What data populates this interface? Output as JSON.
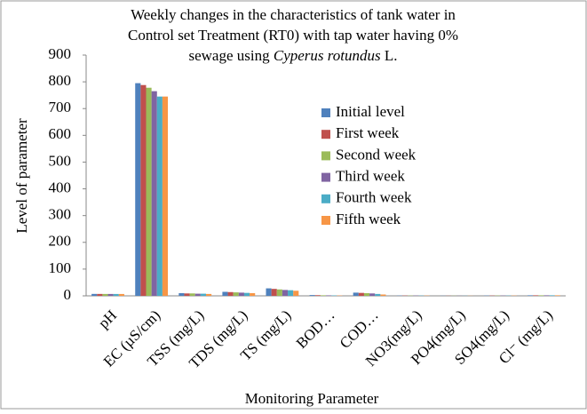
{
  "chart_data": {
    "type": "bar",
    "title_lines": [
      [
        "Weekly changes in the characteristics of tank water in"
      ],
      [
        "Control set Treatment (RT0) with tap water having 0%"
      ],
      [
        "sewage using ",
        "Cyperus rotundus",
        " L."
      ]
    ],
    "x_label": "Monitoring Parameter",
    "y_label": "Level  of parameter",
    "categories": [
      "pH",
      "EC (µS/cm)",
      "TSS (mg/L)",
      "TDS (mg/L)",
      "TS (mg/L)",
      "BOD…",
      "COD…",
      "NO3(mg/L)",
      "PO4(mg/L)",
      "SO4(mg/L)",
      "Cl⁻ (mg/L)"
    ],
    "series": [
      {
        "name": "Initial level",
        "color": "#4f81bd",
        "values": [
          7.2,
          795,
          10,
          15,
          28,
          3,
          12,
          1,
          0.5,
          1,
          2
        ]
      },
      {
        "name": "First week",
        "color": "#c0504d",
        "values": [
          7.1,
          788,
          9,
          14,
          26,
          2.5,
          11,
          1,
          0.5,
          1,
          2
        ]
      },
      {
        "name": "Second week",
        "color": "#9bbb59",
        "values": [
          7.0,
          778,
          9,
          13,
          24,
          2,
          10,
          1,
          0.5,
          1,
          2
        ]
      },
      {
        "name": "Third week",
        "color": "#8064a2",
        "values": [
          7.0,
          765,
          8,
          12,
          22,
          1.8,
          9,
          1,
          0.5,
          1,
          2
        ]
      },
      {
        "name": "Fourth week",
        "color": "#4bacc6",
        "values": [
          6.9,
          745,
          8,
          11,
          21,
          1.5,
          7,
          1,
          0.5,
          1,
          2
        ]
      },
      {
        "name": "Fifth week",
        "color": "#f79646",
        "values": [
          6.9,
          745,
          7,
          10,
          19,
          1.2,
          5,
          1,
          0.5,
          1,
          2
        ]
      }
    ],
    "ylim": [
      0,
      900
    ],
    "yticks": [
      0,
      100,
      200,
      300,
      400,
      500,
      600,
      700,
      800,
      900
    ],
    "grid": false
  }
}
